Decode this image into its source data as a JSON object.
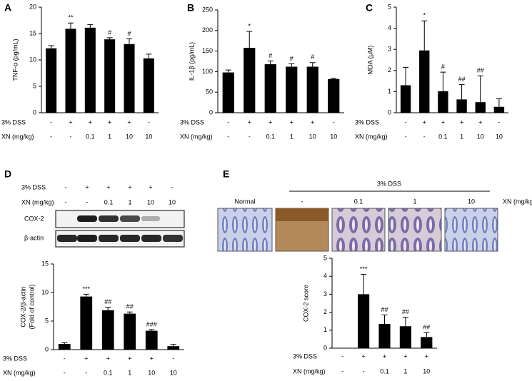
{
  "chart_data": [
    {
      "type": "bar",
      "panel": "A",
      "ylabel": "TNF-α (pg/mL)",
      "ylim": [
        0,
        20
      ],
      "yticks": [
        0,
        5,
        10,
        15,
        20
      ],
      "color": "#000000",
      "values": [
        12.2,
        15.9,
        16.1,
        13.9,
        13.0,
        10.3
      ],
      "errors": [
        0.5,
        1.1,
        0.6,
        0.3,
        1.0,
        0.8
      ],
      "significance": [
        null,
        "**",
        null,
        "#",
        "#",
        null
      ],
      "treatment_rows": [
        {
          "label": "3% DSS",
          "values": [
            "-",
            "+",
            "+",
            "+",
            "+",
            "-"
          ]
        },
        {
          "label": "XN (mg/kg)",
          "values": [
            "-",
            "-",
            "0.1",
            "1",
            "10",
            "10"
          ]
        }
      ]
    },
    {
      "type": "bar",
      "panel": "B",
      "ylabel": "IL-1β (pg/mL)",
      "ylim": [
        0,
        250
      ],
      "yticks": [
        0,
        50,
        100,
        150,
        200,
        250
      ],
      "color": "#000000",
      "values": [
        98,
        158,
        118,
        112,
        112,
        82
      ],
      "errors": [
        6,
        40,
        8,
        7,
        10,
        2
      ],
      "significance": [
        null,
        "*",
        "#",
        "#",
        "#",
        null
      ],
      "treatment_rows": [
        {
          "label": "3% DSS",
          "values": [
            "-",
            "+",
            "+",
            "+",
            "+",
            "-"
          ]
        },
        {
          "label": "XN (mg/kg)",
          "values": [
            "-",
            "-",
            "0.1",
            "1",
            "10",
            "10"
          ]
        }
      ]
    },
    {
      "type": "bar",
      "panel": "C",
      "ylabel": "MDA (μM)",
      "ylim": [
        0,
        5
      ],
      "yticks": [
        0,
        1,
        2,
        3,
        4,
        5
      ],
      "color": "#000000",
      "values": [
        1.3,
        2.95,
        1.02,
        0.63,
        0.5,
        0.28
      ],
      "errors": [
        0.85,
        1.4,
        0.9,
        0.7,
        1.25,
        0.38
      ],
      "significance": [
        null,
        "*",
        "#",
        "##",
        "##",
        null
      ],
      "treatment_rows": [
        {
          "label": "3% DSS",
          "values": [
            "-",
            "+",
            "+",
            "+",
            "+",
            "-"
          ]
        },
        {
          "label": "XN (mg/kg)",
          "values": [
            "-",
            "-",
            "0.1",
            "1",
            "10",
            "10"
          ]
        }
      ]
    },
    {
      "type": "bar",
      "ylabel": [
        "COX-2/β-actin",
        "(Fold of control)"
      ],
      "ylim": [
        0,
        15
      ],
      "yticks": [
        0,
        5,
        10,
        15
      ],
      "color": "#000000",
      "values": [
        1.0,
        9.3,
        6.9,
        6.3,
        3.3,
        0.6
      ],
      "errors": [
        0.2,
        0.4,
        0.5,
        0.3,
        0.2,
        0.3
      ],
      "significance": [
        null,
        "***",
        "##",
        "##",
        "###",
        null
      ],
      "treatment_rows": [
        {
          "label": "3% DSS",
          "values": [
            "-",
            "+",
            "+",
            "+",
            "+",
            "-"
          ]
        },
        {
          "label": "XN (mg/kg)",
          "values": [
            "-",
            "-",
            "0.1",
            "1",
            "10",
            "10"
          ]
        }
      ]
    },
    {
      "type": "bar",
      "ylabel": "COX-2 score",
      "ylim": [
        0,
        5
      ],
      "yticks": [
        0,
        1,
        2,
        3,
        4,
        5
      ],
      "color": "#000000",
      "values": [
        0,
        3.0,
        1.35,
        1.22,
        0.62
      ],
      "errors": [
        0,
        1.1,
        0.5,
        0.5,
        0.25
      ],
      "significance": [
        null,
        "***",
        "##",
        "##",
        "##"
      ],
      "treatment_rows": [
        {
          "label": "3% DSS",
          "values": [
            "-",
            "+",
            "+",
            "+",
            "+"
          ]
        },
        {
          "label": "XN (mg/kg)",
          "values": [
            "-",
            "-",
            "0.1",
            "1",
            "10"
          ]
        }
      ]
    }
  ],
  "blot": {
    "panel": "D",
    "treatment_rows": [
      {
        "label": "3% DSS",
        "values": [
          "-",
          "+",
          "+",
          "+",
          "+",
          "-"
        ]
      },
      {
        "label": "XN (mg/kg)",
        "values": [
          "-",
          "-",
          "0.1",
          "1",
          "10",
          "10"
        ]
      }
    ],
    "lanes": [
      "COX-2",
      "β-actin"
    ]
  },
  "histology": {
    "panel": "E",
    "group_label": "3% DSS",
    "images": [
      "Normal",
      "-",
      "0.1",
      "1",
      "10"
    ],
    "axis_label": "XN (mg/kg)"
  }
}
